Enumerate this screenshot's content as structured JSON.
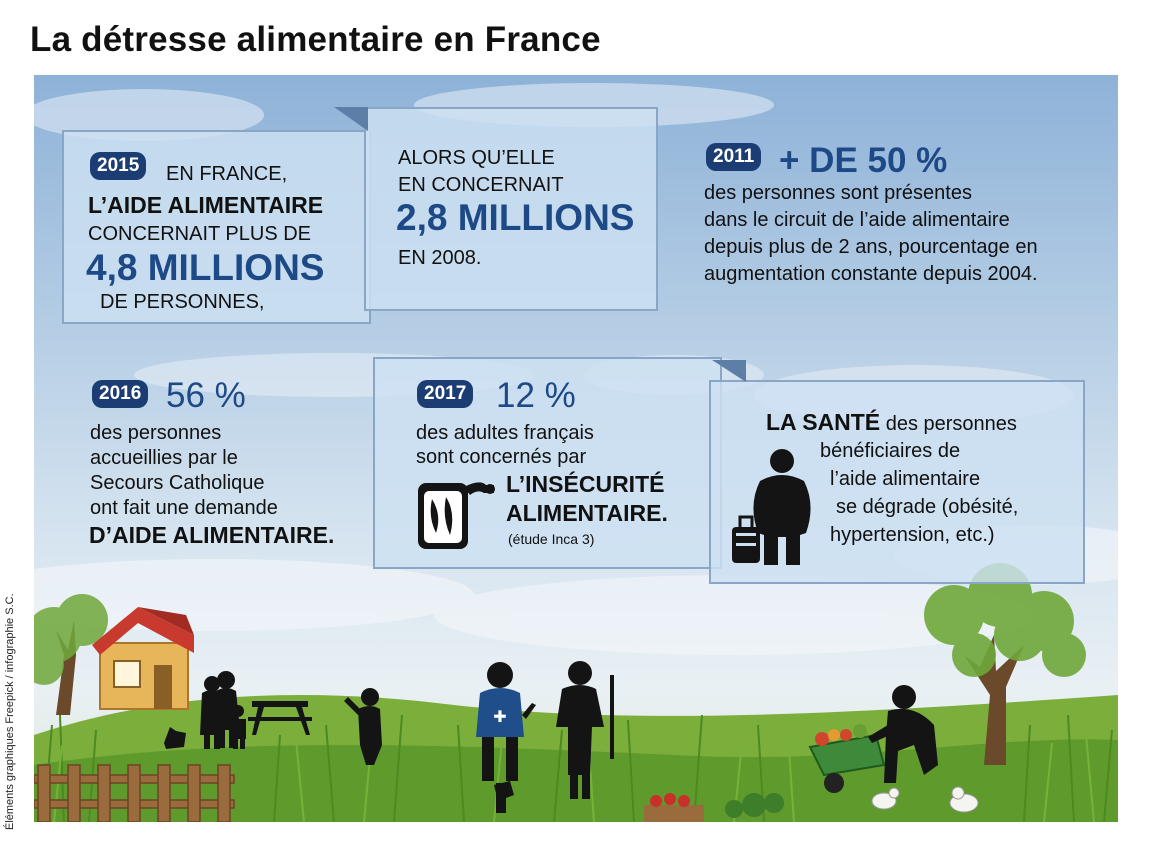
{
  "title": "La détresse alimentaire en France",
  "credit": "Éléments graphiques Freepick / infographie S.C.",
  "block2015": {
    "year": "2015",
    "line1": "EN FRANCE,",
    "line2": "L’AIDE ALIMENTAIRE",
    "line3": "CONCERNAIT PLUS DE",
    "figure": "4,8 MILLIONS",
    "line5": "DE PERSONNES,"
  },
  "block2008": {
    "line1": "ALORS QU’ELLE",
    "line2": "EN CONCERNAIT",
    "figure": "2,8 MILLIONS",
    "line4": "EN 2008."
  },
  "block2011": {
    "year": "2011",
    "figure": "+ DE 50 %",
    "lines": [
      "des personnes sont présentes",
      "dans le circuit de l’aide alimentaire",
      "depuis plus de 2 ans, pourcentage en",
      "augmentation constante depuis 2004."
    ]
  },
  "block2016": {
    "year": "2016",
    "figure": "56 %",
    "lines": [
      "des personnes",
      "accueillies par le",
      "Secours Catholique",
      "ont fait une demande"
    ],
    "emphasis": "D’AIDE ALIMENTAIRE."
  },
  "block2017": {
    "year": "2017",
    "figure": "12 %",
    "line1": "des adultes français",
    "line2": "sont concernés par",
    "emph1": "L’INSÉCURITÉ",
    "emph2": "ALIMENTAIRE.",
    "source": "(étude Inca 3)"
  },
  "blockSante": {
    "emph": "LA SANTÉ",
    "line1": "des personnes",
    "line2": "bénéficiaires de",
    "line3": "l’aide alimentaire",
    "line4": "se dégrade (obésité,",
    "line5": "hypertension, etc.)"
  },
  "colors": {
    "title": "#111111",
    "accent_blue": "#1d4a86",
    "year_badge": "#1c3d74",
    "box_fill": "#cde0f2",
    "box_border": "#8aa6c6",
    "grass": "#5f9a2c"
  },
  "icons": [
    "fish-can-icon",
    "obese-person-luggage-icon",
    "house-illustration",
    "tree-illustration",
    "people-silhouettes",
    "wheelbarrow-gardener",
    "chickens-illustration"
  ]
}
